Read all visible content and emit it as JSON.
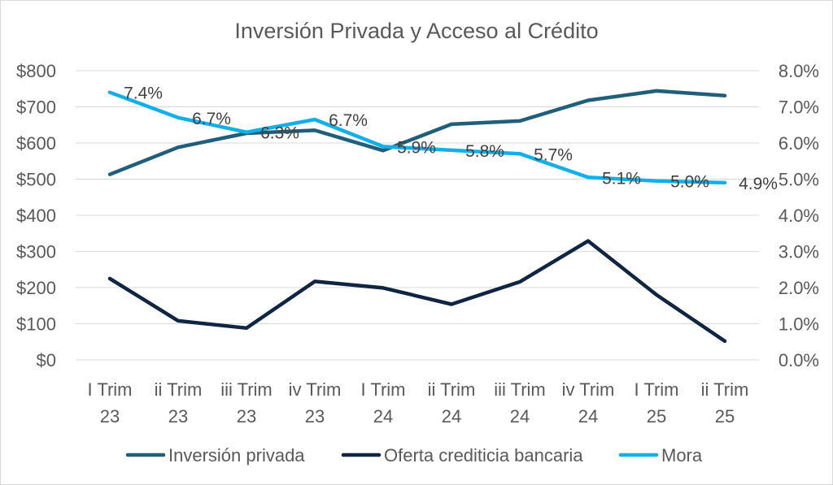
{
  "chart_data": {
    "type": "line",
    "title": "Inversión Privada y Acceso al Crédito",
    "categories": [
      [
        "I Trim",
        "23"
      ],
      [
        "ii Trim",
        "23"
      ],
      [
        "iii Trim",
        "23"
      ],
      [
        "iv Trim",
        "23"
      ],
      [
        "I Trim",
        "24"
      ],
      [
        "ii Trim",
        "24"
      ],
      [
        "iii Trim",
        "24"
      ],
      [
        "iv Trim",
        "24"
      ],
      [
        "I Trim",
        "25"
      ],
      [
        "ii Trim",
        "25"
      ]
    ],
    "y_left": {
      "ticks": [
        "$0",
        "$100",
        "$200",
        "$300",
        "$400",
        "$500",
        "$600",
        "$700",
        "$800"
      ],
      "ylim": [
        0,
        800
      ]
    },
    "y_right": {
      "ticks": [
        "0.0%",
        "1.0%",
        "2.0%",
        "3.0%",
        "4.0%",
        "5.0%",
        "6.0%",
        "7.0%",
        "8.0%"
      ],
      "ylim": [
        0,
        8
      ]
    },
    "grid": true,
    "legend_position": "bottom",
    "series": [
      {
        "name": "Inversión privada",
        "axis": "left",
        "color": "#1f5f7a",
        "values": [
          513,
          588,
          627,
          635,
          579,
          652,
          661,
          718,
          744,
          731
        ]
      },
      {
        "name": "Oferta crediticia bancaria",
        "axis": "left",
        "color": "#0f2541",
        "values": [
          225,
          108,
          88,
          217,
          199,
          154,
          216,
          329,
          180,
          52
        ]
      },
      {
        "name": "Mora",
        "axis": "right",
        "color": "#12b0ea",
        "values": [
          7.4,
          6.7,
          6.3,
          6.65,
          5.9,
          5.8,
          5.7,
          5.05,
          4.95,
          4.9
        ],
        "data_labels": [
          "7.4%",
          "6.7%",
          "6.3%",
          "6.7%",
          "5.9%",
          "5.8%",
          "5.7%",
          "5.1%",
          "5.0%",
          "4.9%"
        ]
      }
    ]
  }
}
